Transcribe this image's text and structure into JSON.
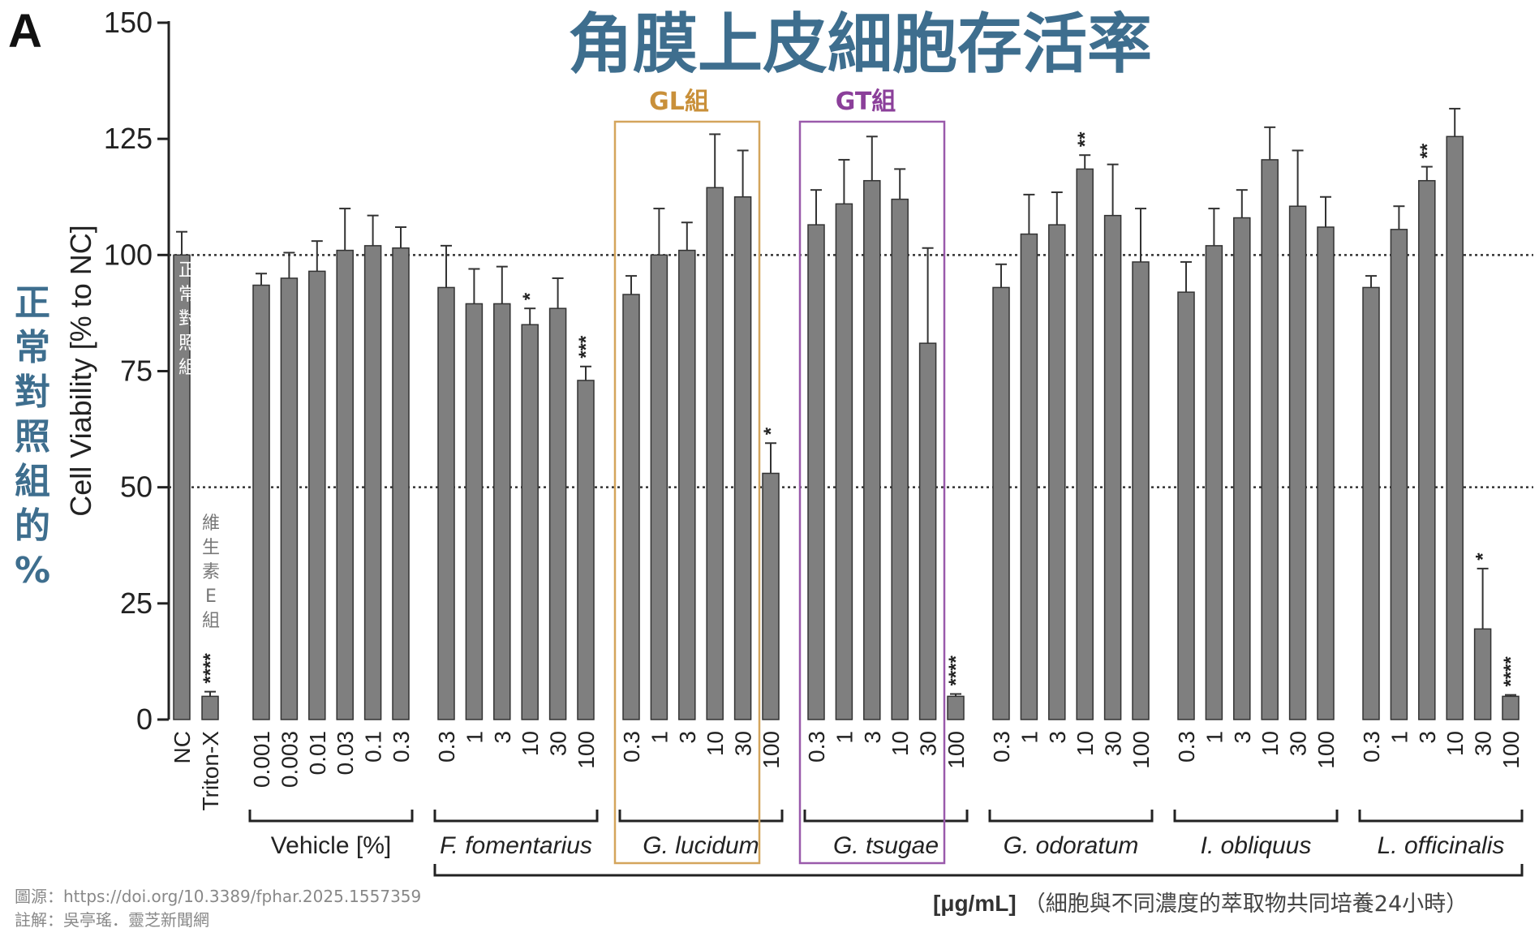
{
  "panel_label": "A",
  "title": "角膜上皮細胞存活率",
  "source_note": "圖源：https://doi.org/10.3389/fphar.2025.1557359",
  "author_note": "註解：吳亭瑤．靈芝新聞網",
  "unit_label": "[μg/mL]",
  "unit_note": "（細胞與不同濃度的萃取物共同培養24小時）",
  "nc_annotation": [
    "正",
    "常",
    "對",
    "照",
    "組"
  ],
  "tx_annotation": [
    "維",
    "生",
    "素",
    "E",
    "組"
  ],
  "gl_box_label": "GL組",
  "gt_box_label": "GT組",
  "chart_data": {
    "type": "bar",
    "ylabel": "Cell Viability [% to NC]",
    "ylabel_annotation": [
      "正",
      "常",
      "對",
      "照",
      "組",
      "的",
      "%"
    ],
    "ylim": [
      0,
      150
    ],
    "yticks": [
      0,
      25,
      50,
      75,
      100,
      125,
      150
    ],
    "reference_lines": [
      50,
      100
    ],
    "groups": [
      {
        "name": "",
        "bars": [
          {
            "label": "NC",
            "value": 100,
            "err": 5,
            "sig": ""
          },
          {
            "label": "Triton-X",
            "value": 5,
            "err": 1,
            "sig": "****"
          }
        ]
      },
      {
        "name": "Vehicle [%]",
        "bars": [
          {
            "label": "0.001",
            "value": 93.5,
            "err": 2.5,
            "sig": ""
          },
          {
            "label": "0.003",
            "value": 95,
            "err": 5.5,
            "sig": ""
          },
          {
            "label": "0.01",
            "value": 96.5,
            "err": 6.5,
            "sig": ""
          },
          {
            "label": "0.03",
            "value": 101,
            "err": 9,
            "sig": ""
          },
          {
            "label": "0.1",
            "value": 102,
            "err": 6.5,
            "sig": ""
          },
          {
            "label": "0.3",
            "value": 101.5,
            "err": 4.5,
            "sig": ""
          }
        ]
      },
      {
        "name": "F. fomentarius",
        "bars": [
          {
            "label": "0.3",
            "value": 93,
            "err": 9,
            "sig": ""
          },
          {
            "label": "1",
            "value": 89.5,
            "err": 7.5,
            "sig": ""
          },
          {
            "label": "3",
            "value": 89.5,
            "err": 8,
            "sig": ""
          },
          {
            "label": "10",
            "value": 85,
            "err": 3.5,
            "sig": "*"
          },
          {
            "label": "30",
            "value": 88.5,
            "err": 6.5,
            "sig": ""
          },
          {
            "label": "100",
            "value": 73,
            "err": 3,
            "sig": "***"
          }
        ]
      },
      {
        "name": "G. lucidum",
        "bars": [
          {
            "label": "0.3",
            "value": 91.5,
            "err": 4,
            "sig": ""
          },
          {
            "label": "1",
            "value": 100,
            "err": 10,
            "sig": ""
          },
          {
            "label": "3",
            "value": 101,
            "err": 6,
            "sig": ""
          },
          {
            "label": "10",
            "value": 114.5,
            "err": 11.5,
            "sig": ""
          },
          {
            "label": "30",
            "value": 112.5,
            "err": 10,
            "sig": ""
          },
          {
            "label": "100",
            "value": 53,
            "err": 6.5,
            "sig": "*"
          }
        ]
      },
      {
        "name": "G. tsugae",
        "bars": [
          {
            "label": "0.3",
            "value": 106.5,
            "err": 7.5,
            "sig": ""
          },
          {
            "label": "1",
            "value": 111,
            "err": 9.5,
            "sig": ""
          },
          {
            "label": "3",
            "value": 116,
            "err": 9.5,
            "sig": ""
          },
          {
            "label": "10",
            "value": 112,
            "err": 6.5,
            "sig": ""
          },
          {
            "label": "30",
            "value": 81,
            "err": 20.5,
            "sig": ""
          },
          {
            "label": "100",
            "value": 5,
            "err": 0.5,
            "sig": "****"
          }
        ]
      },
      {
        "name": "G. odoratum",
        "bars": [
          {
            "label": "0.3",
            "value": 93,
            "err": 5,
            "sig": ""
          },
          {
            "label": "1",
            "value": 104.5,
            "err": 8.5,
            "sig": ""
          },
          {
            "label": "3",
            "value": 106.5,
            "err": 7,
            "sig": ""
          },
          {
            "label": "10",
            "value": 118.5,
            "err": 3,
            "sig": "**"
          },
          {
            "label": "30",
            "value": 108.5,
            "err": 11,
            "sig": ""
          },
          {
            "label": "100",
            "value": 98.5,
            "err": 11.5,
            "sig": ""
          }
        ]
      },
      {
        "name": "I. obliquus",
        "bars": [
          {
            "label": "0.3",
            "value": 92,
            "err": 6.5,
            "sig": ""
          },
          {
            "label": "1",
            "value": 102,
            "err": 8,
            "sig": ""
          },
          {
            "label": "3",
            "value": 108,
            "err": 6,
            "sig": ""
          },
          {
            "label": "10",
            "value": 120.5,
            "err": 7,
            "sig": ""
          },
          {
            "label": "30",
            "value": 110.5,
            "err": 12,
            "sig": ""
          },
          {
            "label": "100",
            "value": 106,
            "err": 6.5,
            "sig": ""
          }
        ]
      },
      {
        "name": "L. officinalis",
        "bars": [
          {
            "label": "0.3",
            "value": 93,
            "err": 2.5,
            "sig": ""
          },
          {
            "label": "1",
            "value": 105.5,
            "err": 5,
            "sig": ""
          },
          {
            "label": "3",
            "value": 116,
            "err": 3,
            "sig": "**"
          },
          {
            "label": "10",
            "value": 125.5,
            "err": 6,
            "sig": ""
          },
          {
            "label": "30",
            "value": 19.5,
            "err": 13,
            "sig": "*"
          },
          {
            "label": "100",
            "value": 5,
            "err": 0.3,
            "sig": "****"
          }
        ]
      }
    ]
  }
}
